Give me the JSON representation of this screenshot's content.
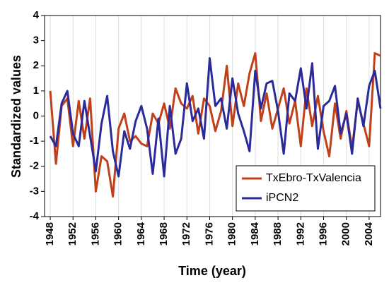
{
  "chart_data": {
    "type": "line",
    "xlabel": "Time (year)",
    "ylabel": "Standardized values",
    "x": [
      1948,
      1949,
      1950,
      1951,
      1952,
      1953,
      1954,
      1955,
      1956,
      1957,
      1958,
      1959,
      1960,
      1961,
      1962,
      1963,
      1964,
      1965,
      1966,
      1967,
      1968,
      1969,
      1970,
      1971,
      1972,
      1973,
      1974,
      1975,
      1976,
      1977,
      1978,
      1979,
      1980,
      1981,
      1982,
      1983,
      1984,
      1985,
      1986,
      1987,
      1988,
      1989,
      1990,
      1991,
      1992,
      1993,
      1994,
      1995,
      1996,
      1997,
      1998,
      1999,
      2000,
      2001,
      2002,
      2003,
      2004,
      2005,
      2006
    ],
    "series": [
      {
        "name": "TxEbro-TxValencia",
        "color": "#c0401a",
        "values": [
          1.0,
          -1.9,
          0.4,
          0.7,
          -1.2,
          0.6,
          -0.9,
          0.7,
          -3.0,
          -1.6,
          -1.8,
          -3.2,
          -0.5,
          0.1,
          -1.0,
          -0.8,
          -1.1,
          -1.2,
          0.1,
          -0.3,
          0.5,
          -0.5,
          1.1,
          0.5,
          0.3,
          0.8,
          -0.7,
          0.7,
          0.4,
          -0.6,
          0.2,
          2.0,
          -0.4,
          1.3,
          0.4,
          1.7,
          2.5,
          -0.2,
          0.9,
          -0.5,
          0.3,
          1.1,
          -0.3,
          0.6,
          -1.2,
          1.1,
          -0.4,
          0.8,
          -0.6,
          -1.6,
          0.5,
          -0.9,
          0.2,
          -1.3,
          0.6,
          -0.3,
          -1.2,
          2.5,
          2.4
        ]
      },
      {
        "name": "iPCN2",
        "color": "#2a2a9a",
        "values": [
          -0.8,
          -1.2,
          0.5,
          1.0,
          -0.7,
          -1.2,
          0.6,
          -0.8,
          -2.2,
          -0.3,
          0.8,
          -1.4,
          -2.4,
          -0.6,
          -1.3,
          -0.2,
          0.4,
          -0.5,
          -2.3,
          -0.1,
          -2.4,
          0.4,
          -1.5,
          -0.9,
          1.3,
          -0.2,
          0.3,
          -0.9,
          2.3,
          0.4,
          0.7,
          -0.5,
          1.5,
          0.1,
          -0.6,
          -1.4,
          1.8,
          0.3,
          1.3,
          1.4,
          0.2,
          -1.5,
          0.9,
          0.6,
          1.9,
          0.3,
          2.1,
          -1.3,
          0.4,
          0.6,
          1.2,
          -0.7,
          0.1,
          -1.5,
          0.7,
          -0.4,
          1.2,
          1.8,
          0.3
        ]
      }
    ],
    "xlim": [
      1947,
      2006
    ],
    "xticks": [
      1948,
      1952,
      1956,
      1960,
      1964,
      1968,
      1972,
      1976,
      1980,
      1984,
      1988,
      1992,
      1996,
      2000,
      2004
    ],
    "ylim": [
      -4,
      4
    ],
    "yticks": [
      -4,
      -3,
      -2,
      -1,
      0,
      1,
      2,
      3,
      4
    ],
    "grid": true,
    "legend": "lower right"
  }
}
